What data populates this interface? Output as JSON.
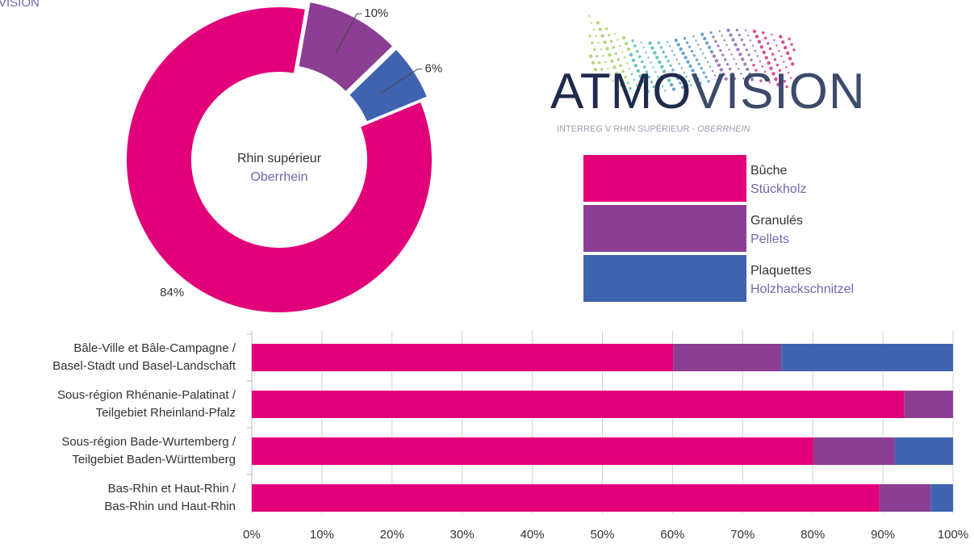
{
  "corner_text": "VISION",
  "logo": {
    "name": "ATMO",
    "name2": "VISION",
    "tagline": "INTERREG V RHIN SUPÉRIEUR - ",
    "tagline2": "OBERRHEIN"
  },
  "chart_data": [
    {
      "type": "pie",
      "donut": true,
      "center_label": [
        "Rhin supérieur",
        "Oberrhein"
      ],
      "categories": [
        "Bûche",
        "Granulés",
        "Plaquettes"
      ],
      "categories_de": [
        "Stückholz",
        "Pellets",
        "Holzhackschnitzel"
      ],
      "values": [
        84,
        10,
        6
      ],
      "value_labels": [
        "84%",
        "10%",
        "6%"
      ],
      "colors": [
        "#e2007a",
        "#8c3e93",
        "#4063b0"
      ],
      "explode": [
        false,
        true,
        true
      ]
    },
    {
      "type": "stacked-barh",
      "categories": [
        [
          "Bâle-Ville et Bâle-Campagne /",
          "Basel-Stadt und Basel-Landschaft"
        ],
        [
          "Sous-région Rhénanie-Palatinat /",
          "Teilgebiet Rheinland-Pfalz"
        ],
        [
          "Sous-région Bade-Wurtemberg /",
          "Teilgebiet Baden-Württemberg"
        ],
        [
          "Bas-Rhin et Haut-Rhin /",
          "Bas-Rhin und Haut-Rhin"
        ]
      ],
      "series": [
        {
          "name": "Bûche",
          "color": "#e2007a",
          "values": [
            60.1,
            93,
            80.1,
            89.5
          ]
        },
        {
          "name": "Granulés",
          "color": "#8c3e93",
          "values": [
            15.4,
            7,
            11.6,
            7.3
          ]
        },
        {
          "name": "Plaquettes",
          "color": "#4063b0",
          "values": [
            24.5,
            0,
            8.3,
            3.2
          ]
        }
      ],
      "xlim": [
        0,
        100
      ],
      "xticks": [
        {
          "value": 0,
          "label": "0%"
        },
        {
          "value": 10,
          "label": "10%"
        },
        {
          "value": 20,
          "label": "20%"
        },
        {
          "value": 30,
          "label": "30%"
        },
        {
          "value": 40,
          "label": "40%"
        },
        {
          "value": 50,
          "label": "50%"
        },
        {
          "value": 60,
          "label": "60%"
        },
        {
          "value": 70,
          "label": "70%"
        },
        {
          "value": 80,
          "label": "80%"
        },
        {
          "value": 90,
          "label": "90%"
        },
        {
          "value": 100,
          "label": "100%"
        }
      ],
      "grid": true
    }
  ]
}
